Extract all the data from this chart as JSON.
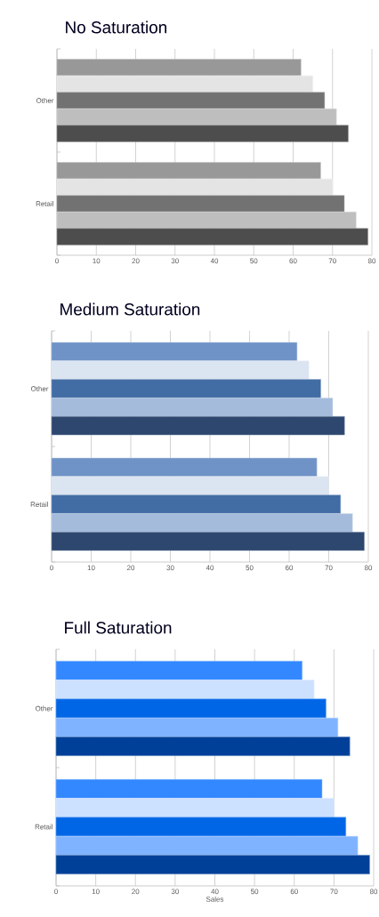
{
  "chart_data": [
    {
      "type": "bar",
      "orientation": "horizontal",
      "title": "No Saturation",
      "categories": [
        "Other",
        "Retail"
      ],
      "series": [
        {
          "color": "#989898",
          "values": [
            62,
            67
          ]
        },
        {
          "color": "#e4e4e4",
          "values": [
            65,
            70
          ]
        },
        {
          "color": "#727272",
          "values": [
            68,
            73
          ]
        },
        {
          "color": "#bebebe",
          "values": [
            71,
            76
          ]
        },
        {
          "color": "#4d4d4d",
          "values": [
            74,
            79
          ]
        }
      ],
      "xlim": [
        0,
        80
      ],
      "xticks": [
        0,
        10,
        20,
        30,
        40,
        50,
        60,
        70,
        80
      ],
      "grid": "x"
    },
    {
      "type": "bar",
      "orientation": "horizontal",
      "title": "Medium Saturation",
      "categories": [
        "Other",
        "Retail"
      ],
      "series": [
        {
          "color": "#6f93c6",
          "values": [
            62,
            67
          ]
        },
        {
          "color": "#dbe4f1",
          "values": [
            65,
            70
          ]
        },
        {
          "color": "#416ca4",
          "values": [
            68,
            73
          ]
        },
        {
          "color": "#a4bbdb",
          "values": [
            71,
            76
          ]
        },
        {
          "color": "#2d476f",
          "values": [
            74,
            79
          ]
        }
      ],
      "xlim": [
        0,
        80
      ],
      "xticks": [
        0,
        10,
        20,
        30,
        40,
        50,
        60,
        70,
        80
      ],
      "grid": "x"
    },
    {
      "type": "bar",
      "orientation": "horizontal",
      "title": "Full Saturation",
      "xlabel": "Sales",
      "categories": [
        "Other",
        "Retail"
      ],
      "series": [
        {
          "color": "#3388ff",
          "values": [
            62,
            67
          ]
        },
        {
          "color": "#cce0ff",
          "values": [
            65,
            70
          ]
        },
        {
          "color": "#0066e6",
          "values": [
            68,
            73
          ]
        },
        {
          "color": "#80b3ff",
          "values": [
            71,
            76
          ]
        },
        {
          "color": "#004099",
          "values": [
            74,
            79
          ]
        }
      ],
      "xlim": [
        0,
        80
      ],
      "xticks": [
        0,
        10,
        20,
        30,
        40,
        50,
        60,
        70,
        80
      ],
      "grid": "x"
    }
  ]
}
